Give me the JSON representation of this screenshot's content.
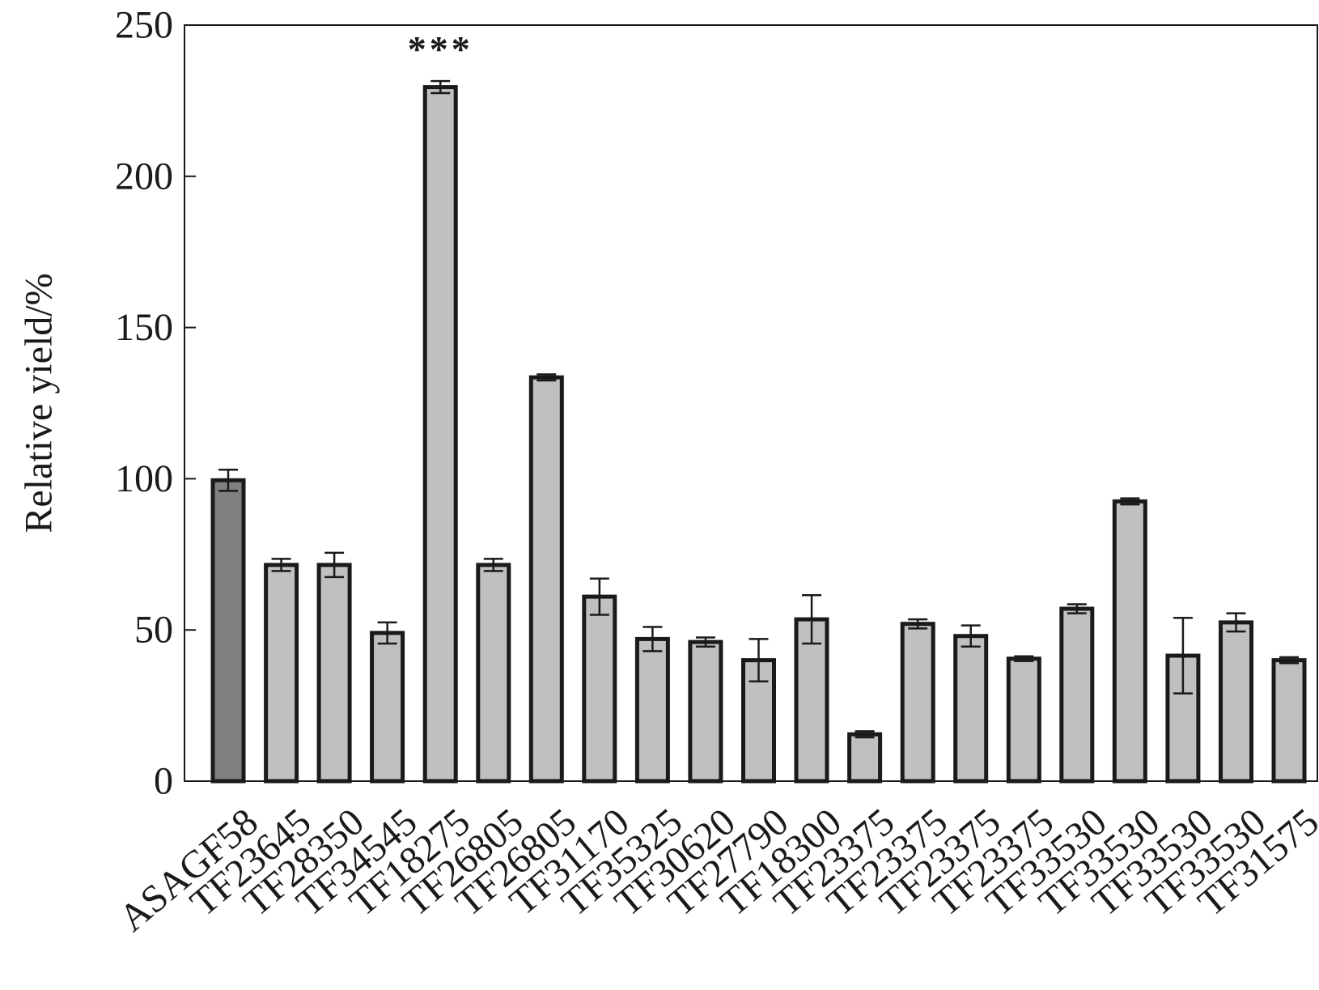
{
  "chart_data": {
    "type": "bar",
    "title": "",
    "xlabel": "",
    "ylabel": "Relative yield/%",
    "ylim": [
      0,
      250
    ],
    "yticks": [
      0,
      50,
      100,
      150,
      200,
      250
    ],
    "grid": false,
    "legend": "none",
    "categories": [
      "ASAGF58",
      "TF23645",
      "TF28350",
      "TF34545",
      "TF18275",
      "TF26805",
      "TF26805",
      "TF31170",
      "TF35325",
      "TF30620",
      "TF27790",
      "TF18300",
      "TF23375",
      "TF23375",
      "TF23375",
      "TF23375",
      "TF33530",
      "TF33530",
      "TF33530",
      "TF33530",
      "TF31575"
    ],
    "values": [
      99.5,
      71.5,
      71.5,
      49,
      229.5,
      71.5,
      133.5,
      61,
      47,
      46,
      40,
      53.5,
      15.5,
      52,
      48,
      40.5,
      57,
      92.5,
      41.5,
      52.5,
      40
    ],
    "errors": [
      3.5,
      2,
      4,
      3.5,
      2,
      2,
      1,
      6,
      4,
      1.5,
      7,
      8,
      1,
      1.5,
      3.5,
      0.8,
      1.5,
      1,
      12.5,
      3,
      1
    ],
    "bar_colors": [
      "#808080",
      "#c0c0c0",
      "#c0c0c0",
      "#c0c0c0",
      "#c0c0c0",
      "#c0c0c0",
      "#c0c0c0",
      "#c0c0c0",
      "#c0c0c0",
      "#c0c0c0",
      "#c0c0c0",
      "#c0c0c0",
      "#c0c0c0",
      "#c0c0c0",
      "#c0c0c0",
      "#c0c0c0",
      "#c0c0c0",
      "#c0c0c0",
      "#c0c0c0",
      "#c0c0c0",
      "#c0c0c0"
    ],
    "annotations": [
      {
        "category_index": 4,
        "text": "***"
      }
    ],
    "edge_color": "#1a1a1a"
  }
}
